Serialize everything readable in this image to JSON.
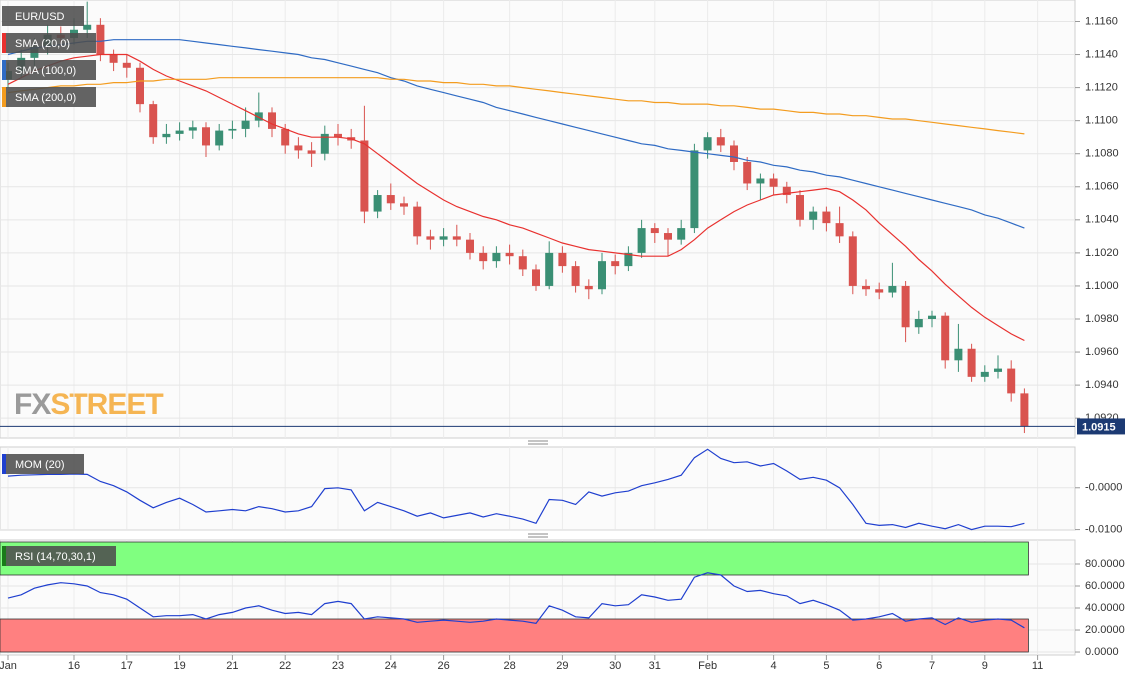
{
  "chart_data": [
    {
      "type": "candlestick",
      "symbol": "EUR/USD",
      "up_color": "#3a8f74",
      "down_color": "#d9534f",
      "watermark": [
        "FX",
        "STREET"
      ],
      "last_price": 1.0915,
      "last_price_color": "#1c3a73",
      "categories": [
        "Jan",
        null,
        null,
        null,
        null,
        "16",
        null,
        null,
        null,
        "17",
        null,
        null,
        null,
        "19",
        null,
        null,
        null,
        "21",
        null,
        null,
        null,
        "22",
        null,
        null,
        null,
        "23",
        null,
        null,
        null,
        "24",
        null,
        null,
        null,
        "26",
        null,
        null,
        null,
        null,
        "28",
        null,
        null,
        null,
        "29",
        null,
        null,
        null,
        "30",
        null,
        null,
        "31",
        null,
        null,
        null,
        "Feb",
        null,
        null,
        null,
        null,
        "4",
        null,
        null,
        null,
        "5",
        null,
        null,
        null,
        "6",
        null,
        null,
        null,
        "7",
        null,
        null,
        null,
        "9",
        null,
        null,
        null,
        "11"
      ],
      "open": [
        1.1125,
        1.113,
        1.1138,
        1.1145,
        1.1152,
        1.115,
        1.1155,
        1.1158,
        1.114,
        1.1135,
        1.1132,
        1.111,
        1.109,
        1.1092,
        1.1094,
        1.1096,
        1.1085,
        1.1094,
        1.1095,
        1.11,
        1.1105,
        1.1095,
        1.1085,
        1.1082,
        1.108,
        1.1092,
        1.109,
        1.1088,
        1.1045,
        1.1055,
        1.105,
        1.1048,
        1.103,
        1.1028,
        1.103,
        1.1028,
        1.102,
        1.1015,
        1.102,
        1.1018,
        1.101,
        1.1,
        1.102,
        1.1012,
        1.1,
        1.0998,
        1.1015,
        1.1012,
        1.102,
        1.1035,
        1.1032,
        1.1028,
        1.1035,
        1.1082,
        1.109,
        1.1085,
        1.1075,
        1.1062,
        1.1065,
        1.106,
        1.1055,
        1.104,
        1.1045,
        1.1038,
        1.103,
        1.1,
        1.0998,
        1.0996,
        1.1,
        1.0975,
        1.098,
        1.0982,
        1.0955,
        1.0962,
        1.0945,
        1.0948,
        1.095,
        1.0935,
        null
      ],
      "high": [
        1.1135,
        1.1143,
        1.115,
        1.1158,
        1.1157,
        1.1162,
        1.1172,
        1.1162,
        1.1143,
        1.114,
        1.1135,
        1.1112,
        1.1098,
        1.1099,
        1.11,
        1.1099,
        1.1098,
        1.11,
        1.1108,
        1.1117,
        1.1108,
        1.1098,
        1.109,
        1.1087,
        1.1097,
        1.1098,
        1.1095,
        1.1109,
        1.1058,
        1.1062,
        1.1054,
        1.1051,
        1.1034,
        1.1035,
        1.1037,
        1.1032,
        1.1024,
        1.1024,
        1.1025,
        1.1022,
        1.1013,
        1.1027,
        1.1024,
        1.1015,
        1.1004,
        1.102,
        1.1019,
        1.1024,
        1.104,
        1.1038,
        1.1035,
        1.104,
        1.1086,
        1.1093,
        1.1095,
        1.1088,
        1.1078,
        1.1068,
        1.1068,
        1.1063,
        1.1058,
        1.1048,
        1.1048,
        1.1048,
        1.1033,
        1.1004,
        1.1002,
        1.1014,
        1.1003,
        1.0985,
        1.0985,
        1.0984,
        1.0977,
        1.0965,
        1.0952,
        1.0958,
        1.0955,
        1.0938,
        null
      ],
      "low": [
        1.112,
        1.1126,
        1.1133,
        1.114,
        1.1145,
        1.1146,
        1.115,
        1.1136,
        1.113,
        1.1126,
        1.1105,
        1.1086,
        1.1086,
        1.1088,
        1.1089,
        1.1078,
        1.1082,
        1.1089,
        1.109,
        1.1096,
        1.109,
        1.108,
        1.1077,
        1.1072,
        1.1076,
        1.1085,
        1.1083,
        1.1038,
        1.1041,
        1.1046,
        1.1043,
        1.1025,
        1.1022,
        1.1024,
        1.1024,
        1.1016,
        1.101,
        1.1011,
        1.1013,
        1.1006,
        1.0997,
        1.0998,
        1.1008,
        1.0996,
        1.0992,
        1.0995,
        1.1007,
        1.1009,
        1.1017,
        1.1026,
        1.1018,
        1.1025,
        1.1032,
        1.1077,
        1.1081,
        1.107,
        1.1058,
        1.1052,
        1.1055,
        1.105,
        1.1036,
        1.1034,
        1.1033,
        1.1026,
        1.0995,
        1.0994,
        1.0992,
        1.0993,
        1.0966,
        1.0971,
        1.0975,
        1.095,
        1.0948,
        1.0942,
        1.0942,
        1.0944,
        1.093,
        1.0911,
        null
      ],
      "close": [
        1.113,
        1.1138,
        1.1145,
        1.1152,
        1.115,
        1.1155,
        1.1158,
        1.114,
        1.1135,
        1.1132,
        1.111,
        1.109,
        1.1092,
        1.1094,
        1.1096,
        1.1085,
        1.1094,
        1.1095,
        1.11,
        1.1105,
        1.1095,
        1.1085,
        1.1082,
        1.108,
        1.1092,
        1.109,
        1.1088,
        1.1045,
        1.1055,
        1.105,
        1.1048,
        1.103,
        1.1028,
        1.103,
        1.1028,
        1.102,
        1.1015,
        1.102,
        1.1018,
        1.101,
        1.1,
        1.102,
        1.1012,
        1.1,
        1.0998,
        1.1015,
        1.1012,
        1.102,
        1.1035,
        1.1032,
        1.1028,
        1.1035,
        1.1082,
        1.109,
        1.1085,
        1.1075,
        1.1062,
        1.1065,
        1.106,
        1.1055,
        1.104,
        1.1045,
        1.1038,
        1.103,
        1.1,
        1.0998,
        1.0996,
        1.1,
        1.0975,
        1.098,
        1.0982,
        1.0955,
        1.0962,
        1.0945,
        1.0948,
        1.095,
        1.0935,
        1.0915,
        null
      ],
      "series": [
        {
          "name": "SMA (20,0)",
          "color": "#e8312f",
          "values": [
            1.1122,
            1.1126,
            1.113,
            1.1133,
            1.1136,
            1.1138,
            1.1139,
            1.114,
            1.114,
            1.114,
            1.1136,
            1.1131,
            1.1127,
            1.1124,
            1.1121,
            1.1118,
            1.1114,
            1.111,
            1.1106,
            1.1102,
            1.1098,
            1.1095,
            1.1092,
            1.109,
            1.109,
            1.109,
            1.1089,
            1.1086,
            1.108,
            1.1074,
            1.1068,
            1.1062,
            1.1057,
            1.1052,
            1.1048,
            1.1045,
            1.1042,
            1.104,
            1.1037,
            1.1035,
            1.1032,
            1.1029,
            1.1026,
            1.1024,
            1.1022,
            1.1021,
            1.102,
            1.1019,
            1.1018,
            1.1018,
            1.1018,
            1.1022,
            1.1028,
            1.1035,
            1.104,
            1.1045,
            1.1049,
            1.1052,
            1.1055,
            1.1056,
            1.1057,
            1.1058,
            1.1059,
            1.1057,
            1.1052,
            1.1046,
            1.1038,
            1.1031,
            1.1024,
            1.1016,
            1.1009,
            1.1001,
            1.0994,
            1.0987,
            1.0981,
            1.0976,
            1.0971,
            1.0967,
            null
          ]
        },
        {
          "name": "SMA (100,0)",
          "color": "#2f6bc4",
          "values": [
            1.114,
            1.1142,
            1.1144,
            1.1145,
            1.1146,
            1.1147,
            1.1148,
            1.1148,
            1.1149,
            1.1149,
            1.1149,
            1.1149,
            1.1149,
            1.1149,
            1.1148,
            1.1147,
            1.1146,
            1.1145,
            1.1144,
            1.1143,
            1.1142,
            1.1141,
            1.114,
            1.1138,
            1.1137,
            1.1135,
            1.1133,
            1.1131,
            1.1129,
            1.1126,
            1.1124,
            1.1121,
            1.1119,
            1.1117,
            1.1115,
            1.1113,
            1.1111,
            1.1108,
            1.1106,
            1.1104,
            1.1102,
            1.11,
            1.1098,
            1.1096,
            1.1094,
            1.1092,
            1.109,
            1.1088,
            1.1086,
            1.1085,
            1.1083,
            1.1082,
            1.1081,
            1.108,
            1.1079,
            1.1078,
            1.1076,
            1.1075,
            1.1073,
            1.1072,
            1.107,
            1.1069,
            1.1067,
            1.1066,
            1.1064,
            1.1062,
            1.106,
            1.1058,
            1.1056,
            1.1054,
            1.1052,
            1.105,
            1.1048,
            1.1046,
            1.1043,
            1.1041,
            1.1038,
            1.1035,
            null
          ]
        },
        {
          "name": "SMA (200,0)",
          "color": "#f39c1f",
          "values": [
            1.1117,
            1.1118,
            1.1119,
            1.112,
            1.1121,
            1.1121,
            1.1122,
            1.1122,
            1.1123,
            1.1123,
            1.1124,
            1.1124,
            1.1125,
            1.1125,
            1.1125,
            1.1125,
            1.1126,
            1.1126,
            1.1126,
            1.1126,
            1.1126,
            1.1126,
            1.1126,
            1.1126,
            1.1126,
            1.1126,
            1.1126,
            1.1126,
            1.1126,
            1.1125,
            1.1125,
            1.1124,
            1.1124,
            1.1123,
            1.1123,
            1.1122,
            1.1122,
            1.1121,
            1.1121,
            1.112,
            1.1119,
            1.1118,
            1.1117,
            1.1116,
            1.1115,
            1.1114,
            1.1113,
            1.1112,
            1.1112,
            1.1111,
            1.1111,
            1.111,
            1.111,
            1.111,
            1.1109,
            1.1109,
            1.1108,
            1.1107,
            1.1107,
            1.1106,
            1.1105,
            1.1105,
            1.1104,
            1.1104,
            1.1103,
            1.1103,
            1.1102,
            1.1101,
            1.1101,
            1.11,
            1.1099,
            1.1098,
            1.1097,
            1.1096,
            1.1095,
            1.1094,
            1.1093,
            1.1092,
            null
          ]
        }
      ],
      "ylim": [
        1.0908,
        1.1173
      ],
      "yticks": [
        {
          "value": 1.116,
          "label": "1.1160"
        },
        {
          "value": 1.114,
          "label": "1.1140"
        },
        {
          "value": 1.112,
          "label": "1.1120"
        },
        {
          "value": 1.11,
          "label": "1.1100"
        },
        {
          "value": 1.108,
          "label": "1.1080"
        },
        {
          "value": 1.106,
          "label": "1.1060"
        },
        {
          "value": 1.104,
          "label": "1.1040"
        },
        {
          "value": 1.102,
          "label": "1.1020"
        },
        {
          "value": 1.1,
          "label": "1.1000"
        },
        {
          "value": 1.098,
          "label": "1.0980"
        },
        {
          "value": 1.096,
          "label": "1.0960"
        },
        {
          "value": 1.094,
          "label": "1.0940"
        },
        {
          "value": 1.092,
          "label": "1.0920"
        }
      ],
      "grid": true
    },
    {
      "type": "line",
      "series": [
        {
          "name": "MOM (20)",
          "color": "#1f3fcf",
          "values": [
            0.0028,
            0.003,
            0.0031,
            0.0032,
            0.0032,
            0.0033,
            0.0032,
            0.0015,
            0.0005,
            -0.001,
            -0.003,
            -0.0048,
            -0.0035,
            -0.0025,
            -0.004,
            -0.0058,
            -0.0055,
            -0.0052,
            -0.0055,
            -0.0045,
            -0.005,
            -0.0058,
            -0.0055,
            -0.0045,
            -0.0002,
            0.0,
            -0.0005,
            -0.0055,
            -0.0035,
            -0.0045,
            -0.0055,
            -0.0068,
            -0.006,
            -0.0072,
            -0.0066,
            -0.006,
            -0.007,
            -0.0062,
            -0.0068,
            -0.0075,
            -0.0085,
            -0.0028,
            -0.003,
            -0.004,
            -0.001,
            -0.002,
            -0.0012,
            -0.0008,
            0.0005,
            0.0012,
            0.002,
            0.003,
            0.0072,
            0.0092,
            0.007,
            0.006,
            0.0062,
            0.0052,
            0.0058,
            0.004,
            0.002,
            0.0025,
            0.0018,
            0.0,
            -0.004,
            -0.0085,
            -0.009,
            -0.0088,
            -0.0095,
            -0.0085,
            -0.0092,
            -0.0098,
            -0.0088,
            -0.01,
            -0.0092,
            -0.0092,
            -0.0093,
            -0.0085,
            null
          ]
        }
      ],
      "ylim": [
        -0.0101,
        0.00975
      ],
      "yticks": [
        {
          "value": 0,
          "label": "-0.0000"
        },
        {
          "value": -0.01,
          "label": "-0.0100"
        }
      ],
      "grid": true
    },
    {
      "type": "line",
      "series": [
        {
          "name": "RSI (14,70,30,1)",
          "color": "#1f3fcf",
          "values": [
            49,
            52,
            58,
            61,
            63,
            62,
            60,
            54,
            52,
            48,
            40,
            32,
            33,
            33,
            34,
            30,
            34,
            36,
            40,
            42,
            38,
            35,
            36,
            34,
            44,
            46,
            44,
            30,
            32,
            31,
            30,
            27,
            28,
            29,
            28,
            27,
            28,
            30,
            29,
            28,
            26,
            42,
            38,
            32,
            31,
            44,
            42,
            43,
            52,
            50,
            47,
            48,
            68,
            72,
            70,
            60,
            55,
            56,
            53,
            51,
            44,
            47,
            43,
            38,
            29,
            30,
            32,
            35,
            28,
            30,
            31,
            25,
            31,
            27,
            29,
            30,
            29,
            22,
            null
          ]
        }
      ],
      "overbought": 70,
      "oversold": 30,
      "overbought_color": "#80ff80",
      "oversold_color": "#ff8080",
      "legend_color": "#1a7a1a",
      "ylim": [
        -2.7,
        101.8
      ],
      "yticks": [
        {
          "value": 80,
          "label": "80.0000"
        },
        {
          "value": 60,
          "label": "60.0000"
        },
        {
          "value": 40,
          "label": "40.0000"
        },
        {
          "value": 20,
          "label": "20.0000"
        },
        {
          "value": 0,
          "label": "0.0000"
        }
      ],
      "grid": true
    }
  ]
}
